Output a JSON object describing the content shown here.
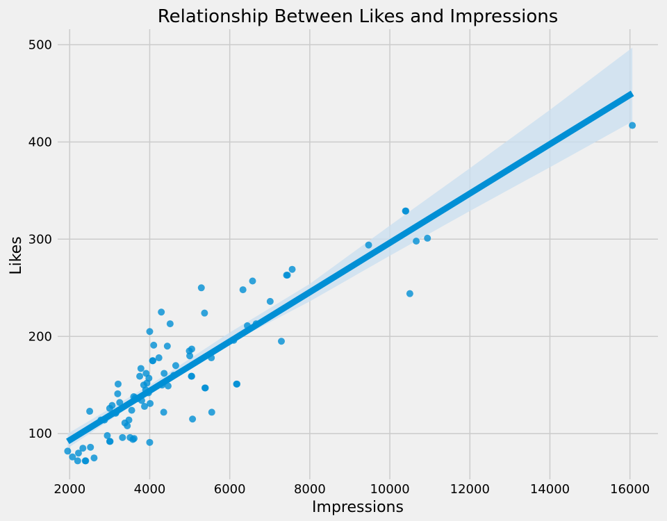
{
  "chart_data": {
    "type": "scatter",
    "title": "Relationship Between Likes and Impressions",
    "xlabel": "Impressions",
    "ylabel": "Likes",
    "xlim": [
      1700,
      16700
    ],
    "ylim": [
      53,
      516
    ],
    "xticks": [
      2000,
      4000,
      6000,
      8000,
      10000,
      12000,
      14000,
      16000
    ],
    "yticks": [
      100,
      200,
      300,
      400,
      500
    ],
    "grid": true,
    "colors": {
      "points": "#008fd5",
      "line": "#008fd5",
      "band": "#c9dff0",
      "background": "#f0f0f0",
      "grid": "#cbcbcb"
    },
    "points": [
      [
        1950,
        82
      ],
      [
        2070,
        76
      ],
      [
        2200,
        72
      ],
      [
        2220,
        80
      ],
      [
        2330,
        85
      ],
      [
        2390,
        72
      ],
      [
        2400,
        72
      ],
      [
        2520,
        86
      ],
      [
        2610,
        75
      ],
      [
        2500,
        123
      ],
      [
        2780,
        114
      ],
      [
        2870,
        114
      ],
      [
        2940,
        98
      ],
      [
        3000,
        126
      ],
      [
        3000,
        92
      ],
      [
        3010,
        92
      ],
      [
        3060,
        129
      ],
      [
        3150,
        121
      ],
      [
        3160,
        122
      ],
      [
        3200,
        141
      ],
      [
        3210,
        151
      ],
      [
        3250,
        132
      ],
      [
        3320,
        96
      ],
      [
        3380,
        111
      ],
      [
        3440,
        108
      ],
      [
        3480,
        114
      ],
      [
        3510,
        96
      ],
      [
        3550,
        124
      ],
      [
        3580,
        94
      ],
      [
        3600,
        138
      ],
      [
        3610,
        95
      ],
      [
        3640,
        137
      ],
      [
        3700,
        136
      ],
      [
        3750,
        159
      ],
      [
        3780,
        167
      ],
      [
        3800,
        134
      ],
      [
        3850,
        150
      ],
      [
        3870,
        128
      ],
      [
        3900,
        145
      ],
      [
        3910,
        162
      ],
      [
        3930,
        152
      ],
      [
        3970,
        142
      ],
      [
        3980,
        157
      ],
      [
        4000,
        205
      ],
      [
        4000,
        91
      ],
      [
        4010,
        131
      ],
      [
        4070,
        175
      ],
      [
        4080,
        175
      ],
      [
        4100,
        191
      ],
      [
        4230,
        178
      ],
      [
        4290,
        225
      ],
      [
        4310,
        150
      ],
      [
        4350,
        122
      ],
      [
        4360,
        162
      ],
      [
        4440,
        190
      ],
      [
        4460,
        149
      ],
      [
        4510,
        213
      ],
      [
        4600,
        160
      ],
      [
        4650,
        170
      ],
      [
        4990,
        185
      ],
      [
        5000,
        180
      ],
      [
        5050,
        187
      ],
      [
        5040,
        159
      ],
      [
        5050,
        159
      ],
      [
        5070,
        115
      ],
      [
        5290,
        250
      ],
      [
        5370,
        224
      ],
      [
        5380,
        147
      ],
      [
        5390,
        147
      ],
      [
        5540,
        178
      ],
      [
        5550,
        122
      ],
      [
        6100,
        196
      ],
      [
        6170,
        151
      ],
      [
        6180,
        151
      ],
      [
        6330,
        248
      ],
      [
        6440,
        211
      ],
      [
        6570,
        257
      ],
      [
        6660,
        213
      ],
      [
        7010,
        236
      ],
      [
        7290,
        195
      ],
      [
        7420,
        263
      ],
      [
        7440,
        263
      ],
      [
        7560,
        269
      ],
      [
        9470,
        294
      ],
      [
        10390,
        329
      ],
      [
        10400,
        329
      ],
      [
        10500,
        244
      ],
      [
        10660,
        298
      ],
      [
        10940,
        301
      ],
      [
        16060,
        417
      ]
    ],
    "regression": {
      "x": [
        1950,
        16060
      ],
      "y": [
        92,
        450
      ]
    },
    "confidence_band": {
      "x": [
        1950,
        4000,
        6000,
        8000,
        10000,
        12000,
        14000,
        16060
      ],
      "lower": [
        85,
        141,
        193,
        236,
        283,
        329,
        374,
        421
      ],
      "upper": [
        100,
        150,
        204,
        254,
        314,
        373,
        433,
        497
      ]
    }
  }
}
